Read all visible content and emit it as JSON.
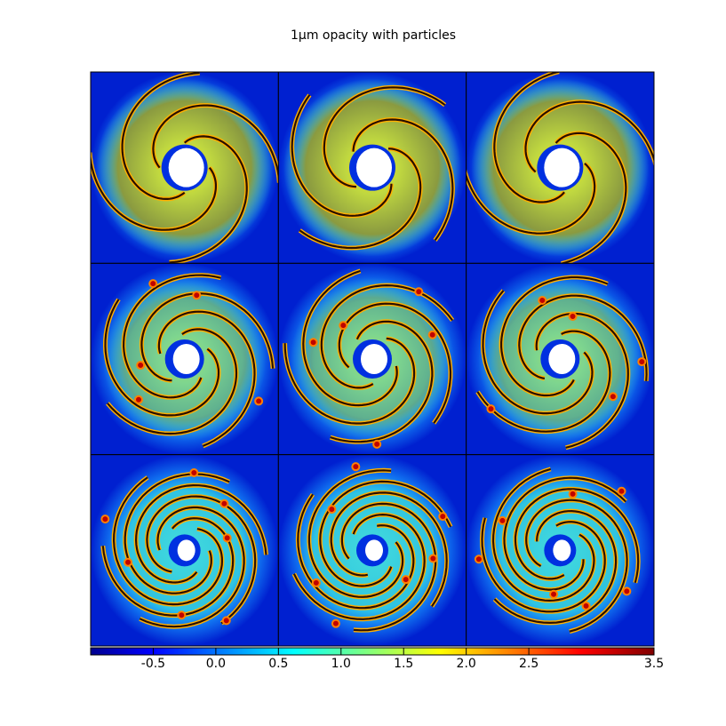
{
  "chart_data": {
    "type": "image",
    "title": "1μm opacity with particles",
    "colorbar": {
      "clim": [
        -1.0,
        3.5
      ],
      "ticks": [
        -0.5,
        {
          "value": 0,
          "label": "0.0"
        },
        0.5,
        {
          "value": 1,
          "label": "1.0"
        },
        1.5,
        {
          "value": 2,
          "label": "2.0"
        },
        2.5,
        3.5
      ]
    }
  }
}
